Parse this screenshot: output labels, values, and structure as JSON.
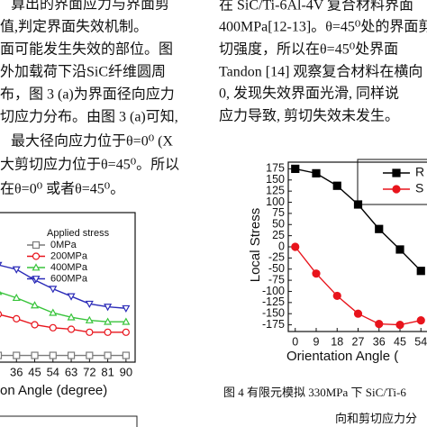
{
  "text_left": {
    "lines": [
      "算出的界面应力与界面剪",
      "值,判定界面失效机制。",
      "面可能发生失效的部位。图",
      "外加载荷下沿SiC纤维圆周",
      "布，图 3 (a)为界面径向应力",
      "切应力分布。由图 3 (a)可知,",
      "最大径向应力位于θ=0⁰  (X",
      "大剪切应力位于θ=45⁰。所以",
      "在θ=0⁰  或者θ=45⁰。"
    ]
  },
  "text_right": {
    "lines": [
      "在 SiC/Ti-6Al-4V 复合材料界面",
      "400MPa[12-13]。θ=45⁰处的界面剪",
      "切强度，所以在θ=45⁰处界面",
      "Tandon [14]  观察复合材料在横向",
      "0, 发现失效界面光滑, 同样说",
      "应力导致, 剪切失效未发生。"
    ]
  },
  "figure_left": {
    "type": "line",
    "xlabel": "on Angle (degree)",
    "legend_title": "Applied stress",
    "x": [
      27,
      36,
      45,
      54,
      63,
      72,
      81,
      90
    ],
    "xlim": [
      27,
      94.5
    ],
    "xticks": [
      36,
      45,
      54,
      63,
      72,
      81,
      90
    ],
    "ylim": [
      0,
      100
    ],
    "series": [
      {
        "name": "0MPa",
        "color": "#7a7a7a",
        "marker": "square",
        "filled": false,
        "values": [
          4.5,
          4.5,
          4.5,
          4.5,
          4.5,
          4.5,
          4.5,
          4.5
        ]
      },
      {
        "name": "200MPa",
        "color": "#e8141c",
        "marker": "circle",
        "filled": false,
        "values": [
          32,
          29,
          25,
          23,
          22,
          20,
          20,
          20
        ]
      },
      {
        "name": "400MPa",
        "color": "#39c43c",
        "marker": "triangle",
        "filled": false,
        "values": [
          47,
          43,
          38,
          33,
          30,
          28,
          27,
          27
        ]
      },
      {
        "name": "600MPa",
        "color": "#2b2bb8",
        "marker": "triangle-down",
        "filled": false,
        "values": [
          65,
          62,
          55,
          49,
          44,
          39,
          37,
          36
        ]
      }
    ]
  },
  "figure_right": {
    "type": "line",
    "xlabel": "Orientation Angle (",
    "ylabel": "Local Stress",
    "x": [
      0,
      9,
      18,
      27,
      36,
      45,
      54
    ],
    "xlim": [
      -3,
      93
    ],
    "xticks": [
      0,
      9,
      18,
      27,
      36,
      45,
      54
    ],
    "ylim": [
      -190,
      190
    ],
    "yticks": [
      175,
      150,
      125,
      100,
      75,
      50,
      25,
      0,
      -25,
      -50,
      -75,
      -100,
      -125,
      -150,
      -175
    ],
    "series": [
      {
        "name": "R",
        "color": "#000000",
        "marker": "square",
        "filled": true,
        "values": [
          175,
          165,
          137,
          95,
          40,
          -6,
          -54
        ]
      },
      {
        "name": "S",
        "color": "#e8141c",
        "marker": "circle",
        "filled": true,
        "values": [
          0,
          -60,
          -110,
          -150,
          -173,
          -175,
          -165
        ]
      }
    ]
  },
  "caption": {
    "lines": [
      "图 4 有限元模拟 330MPa 下 SiC/Ti-6",
      "向和剪切应力分"
    ]
  }
}
